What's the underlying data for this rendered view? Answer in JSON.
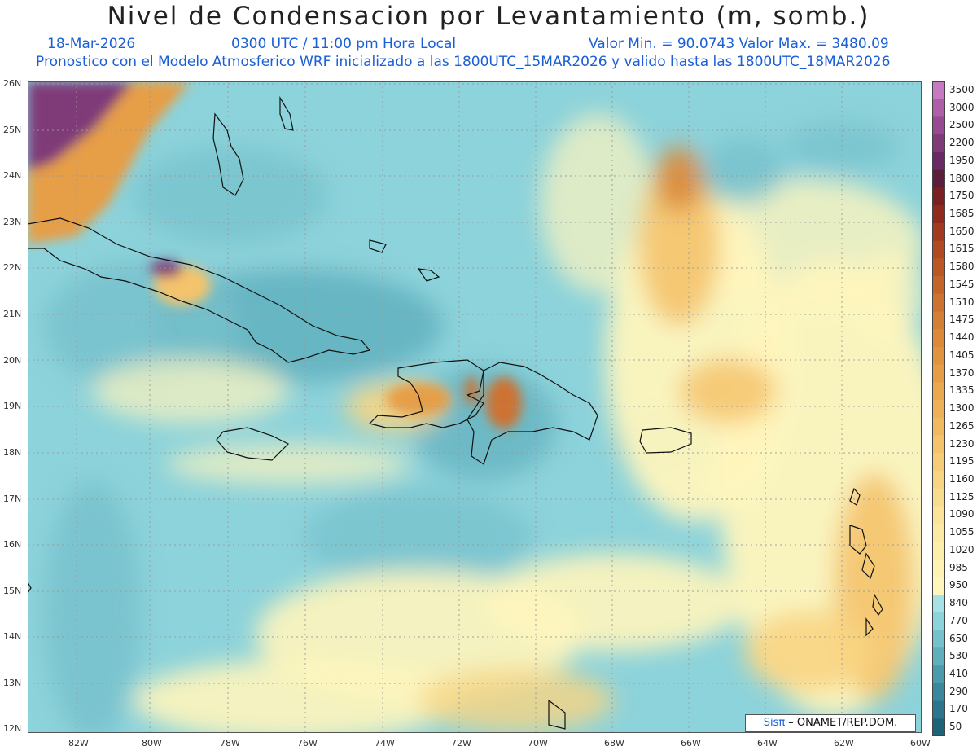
{
  "header": {
    "title": "Nivel de Condensacion por Levantamiento (m, somb.)",
    "date": "18-Mar-2026",
    "time": "0300 UTC / 11:00 pm Hora Local",
    "min_max": "Valor Min. = 90.0743  Valor Max. = 3480.09",
    "forecast": "Pronostico con el Modelo Atmosferico WRF inicializado a las 1800UTC_15MAR2026 y valido hasta las  1800UTC_18MAR2026"
  },
  "map": {
    "lat_labels": [
      "26N",
      "25N",
      "24N",
      "23N",
      "22N",
      "21N",
      "20N",
      "19N",
      "18N",
      "17N",
      "16N",
      "15N",
      "14N",
      "13N",
      "12N"
    ],
    "lon_labels": [
      "82W",
      "80W",
      "78W",
      "76W",
      "74W",
      "72W",
      "70W",
      "68W",
      "66W",
      "64W",
      "62W",
      "60W"
    ],
    "lat_range": [
      12,
      26
    ],
    "lon_range": [
      -83,
      -60
    ],
    "grid": true
  },
  "colorbar": {
    "labels": [
      "3500",
      "3000",
      "2500",
      "2200",
      "1950",
      "1800",
      "1750",
      "1685",
      "1650",
      "1615",
      "1580",
      "1545",
      "1510",
      "1475",
      "1440",
      "1405",
      "1370",
      "1335",
      "1300",
      "1265",
      "1230",
      "1195",
      "1160",
      "1125",
      "1090",
      "1055",
      "1020",
      "985",
      "950",
      "840",
      "770",
      "650",
      "530",
      "410",
      "290",
      "170",
      "50"
    ],
    "colors": [
      "#c67ac2",
      "#b05ea8",
      "#974a91",
      "#7f3a78",
      "#6a2a63",
      "#5b1f3c",
      "#7a1f22",
      "#8f2a1d",
      "#a13a1e",
      "#b04a20",
      "#bc5724",
      "#c56428",
      "#cd7230",
      "#d57f36",
      "#dc8a3a",
      "#e1943f",
      "#e69e46",
      "#eaa84f",
      "#eeb158",
      "#f1ba61",
      "#f4c36c",
      "#f6cc77",
      "#f8d583",
      "#f9dd8f",
      "#fbe49a",
      "#fce9a3",
      "#fdeeac",
      "#fef2b4",
      "#fff5bd",
      "#a6e1e6",
      "#8dd3db",
      "#75c1cc",
      "#5fafbd",
      "#4a9cad",
      "#3a889d",
      "#2c758c",
      "#1f6379"
    ]
  },
  "credit": {
    "brand": "Sisπ",
    "org": " – ONAMET/REP.DOM."
  }
}
